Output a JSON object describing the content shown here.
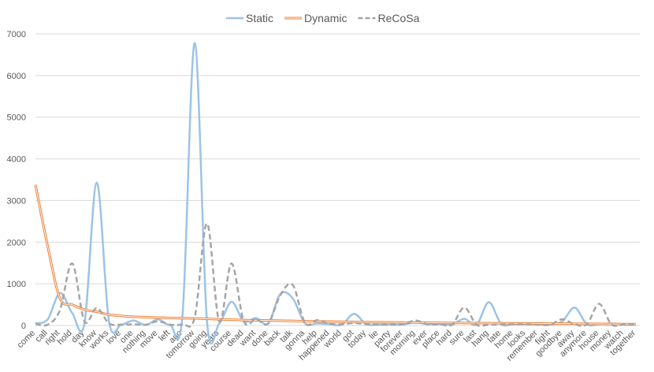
{
  "chart_data": {
    "type": "line",
    "categories": [
      "come",
      "call",
      "right",
      "hold",
      "day",
      "know",
      "works",
      "love",
      "one",
      "nothing",
      "move",
      "left",
      "ago",
      "tomorrow",
      "going",
      "years",
      "course",
      "dead",
      "want",
      "done",
      "back",
      "talk",
      "gonna",
      "help",
      "happened",
      "world",
      "got",
      "today",
      "lie",
      "party",
      "forever",
      "morning",
      "ever",
      "place",
      "hard",
      "sure",
      "last",
      "hang",
      "late",
      "home",
      "looks",
      "remember",
      "fight",
      "goodbye",
      "away",
      "anymore",
      "house",
      "money",
      "watch",
      "together"
    ],
    "series": [
      {
        "name": "Static",
        "color": "#9dc3e6",
        "style": "solid",
        "values": [
          50,
          150,
          780,
          300,
          50,
          3430,
          100,
          20,
          120,
          10,
          150,
          10,
          250,
          6780,
          100,
          50,
          570,
          100,
          180,
          50,
          760,
          650,
          50,
          50,
          30,
          20,
          280,
          30,
          20,
          20,
          20,
          80,
          30,
          30,
          20,
          160,
          20,
          560,
          40,
          30,
          30,
          30,
          20,
          100,
          430,
          30,
          30,
          50,
          20,
          20
        ]
      },
      {
        "name": "Dynamic",
        "color": "#ed7d31",
        "style": "double",
        "values": [
          3380,
          1900,
          650,
          500,
          380,
          330,
          260,
          230,
          210,
          200,
          190,
          180,
          175,
          170,
          160,
          150,
          140,
          130,
          125,
          120,
          115,
          110,
          105,
          100,
          95,
          90,
          85,
          80,
          78,
          75,
          72,
          70,
          68,
          65,
          62,
          60,
          58,
          56,
          54,
          52,
          50,
          48,
          46,
          44,
          42,
          40,
          38,
          36,
          34,
          32
        ]
      },
      {
        "name": "ReCoSa",
        "color": "#a5a5a5",
        "style": "dashed",
        "values": [
          40,
          20,
          370,
          1490,
          100,
          420,
          50,
          20,
          30,
          20,
          100,
          20,
          30,
          200,
          2450,
          100,
          1490,
          100,
          150,
          50,
          740,
          970,
          60,
          130,
          40,
          30,
          60,
          30,
          20,
          20,
          30,
          120,
          30,
          30,
          20,
          430,
          20,
          20,
          30,
          30,
          30,
          20,
          20,
          150,
          30,
          30,
          520,
          30,
          20,
          20
        ]
      }
    ],
    "ylim": [
      0,
      7000
    ],
    "yticks": [
      0,
      1000,
      2000,
      3000,
      4000,
      5000,
      6000,
      7000
    ],
    "grid": true,
    "legend": "top"
  }
}
